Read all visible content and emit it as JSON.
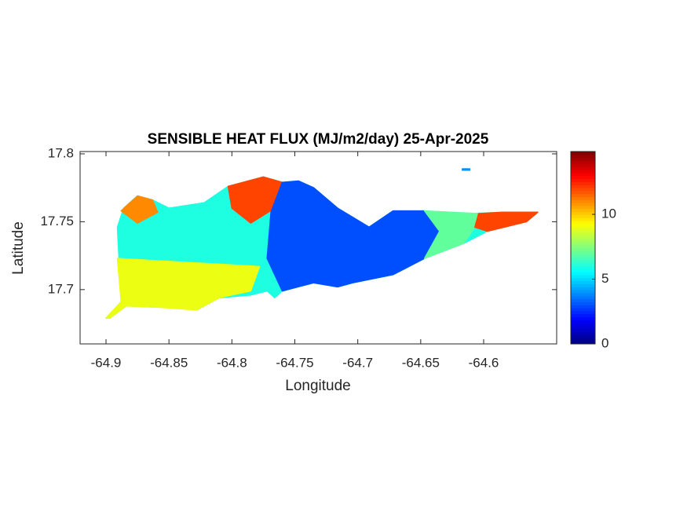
{
  "chart_data": {
    "type": "map",
    "title": "SENSIBLE HEAT FLUX (MJ/m2/day) 25-Apr-2025",
    "x_label": "Longitude",
    "y_label": "Latitude",
    "xlim": [
      -64.9206,
      -64.542
    ],
    "ylim": [
      17.66,
      17.8017
    ],
    "xticks": [
      -64.9,
      -64.85,
      -64.8,
      -64.75,
      -64.7,
      -64.65,
      -64.6
    ],
    "yticks": [
      17.7,
      17.75,
      17.8
    ],
    "colormap": "jet",
    "clim": [
      0,
      14.85
    ],
    "cticks": [
      0,
      5,
      10
    ],
    "regions": [
      {
        "value": 6,
        "lon": [
          -64.9,
          -64.888,
          -64.891,
          -64.886,
          -64.875,
          -64.863,
          -64.85,
          -64.822,
          -64.803,
          -64.775,
          -64.76,
          -64.747,
          -64.735,
          -64.716,
          -64.691,
          -64.672,
          -64.647,
          -64.61,
          -64.585,
          -64.557,
          -64.566,
          -64.597,
          -64.616,
          -64.647,
          -64.672,
          -64.704,
          -64.716,
          -64.735,
          -64.76,
          -64.766,
          -64.772,
          -64.785,
          -64.81,
          -64.828,
          -64.838,
          -64.859,
          -64.884,
          -64.897
        ],
        "lat": [
          17.679,
          17.691,
          17.746,
          17.76,
          17.769,
          17.766,
          17.76,
          17.764,
          17.776,
          17.783,
          17.779,
          17.78,
          17.775,
          17.76,
          17.746,
          17.758,
          17.758,
          17.756,
          17.757,
          17.757,
          17.75,
          17.743,
          17.734,
          17.723,
          17.711,
          17.705,
          17.702,
          17.705,
          17.699,
          17.694,
          17.699,
          17.696,
          17.694,
          17.685,
          17.688,
          17.687,
          17.688,
          17.679
        ]
      },
      {
        "value": 9,
        "lon": [
          -64.891,
          -64.778,
          -64.785,
          -64.81,
          -64.828,
          -64.859,
          -64.884,
          -64.897,
          -64.9,
          -64.888
        ],
        "lat": [
          17.723,
          17.717,
          17.699,
          17.694,
          17.685,
          17.687,
          17.688,
          17.679,
          17.679,
          17.691
        ]
      },
      {
        "value": 12,
        "lon": [
          -64.803,
          -64.775,
          -64.76,
          -64.766,
          -64.785,
          -64.8
        ],
        "lat": [
          17.776,
          17.783,
          17.779,
          17.76,
          17.749,
          17.76
        ]
      },
      {
        "value": 11,
        "lon": [
          -64.888,
          -64.875,
          -64.863,
          -64.859,
          -64.875
        ],
        "lat": [
          17.758,
          17.769,
          17.766,
          17.757,
          17.749
        ]
      },
      {
        "value": 3,
        "lon": [
          -64.76,
          -64.747,
          -64.735,
          -64.716,
          -64.691,
          -64.672,
          -64.647,
          -64.635,
          -64.647,
          -64.672,
          -64.704,
          -64.716,
          -64.735,
          -64.76,
          -64.772,
          -64.769
        ],
        "lat": [
          17.779,
          17.78,
          17.775,
          17.76,
          17.746,
          17.758,
          17.758,
          17.743,
          17.723,
          17.711,
          17.705,
          17.702,
          17.705,
          17.699,
          17.723,
          17.757
        ]
      },
      {
        "value": 7,
        "lon": [
          -64.647,
          -64.604,
          -64.607,
          -64.616,
          -64.647,
          -64.635
        ],
        "lat": [
          17.758,
          17.756,
          17.746,
          17.734,
          17.723,
          17.743
        ]
      },
      {
        "value": 12,
        "lon": [
          -64.604,
          -64.585,
          -64.557,
          -64.566,
          -64.597,
          -64.607
        ],
        "lat": [
          17.756,
          17.757,
          17.757,
          17.75,
          17.743,
          17.746
        ]
      },
      {
        "value": 4,
        "lon": [
          -64.617,
          -64.611,
          -64.611,
          -64.617
        ],
        "lat": [
          17.789,
          17.789,
          17.788,
          17.788
        ]
      }
    ]
  }
}
